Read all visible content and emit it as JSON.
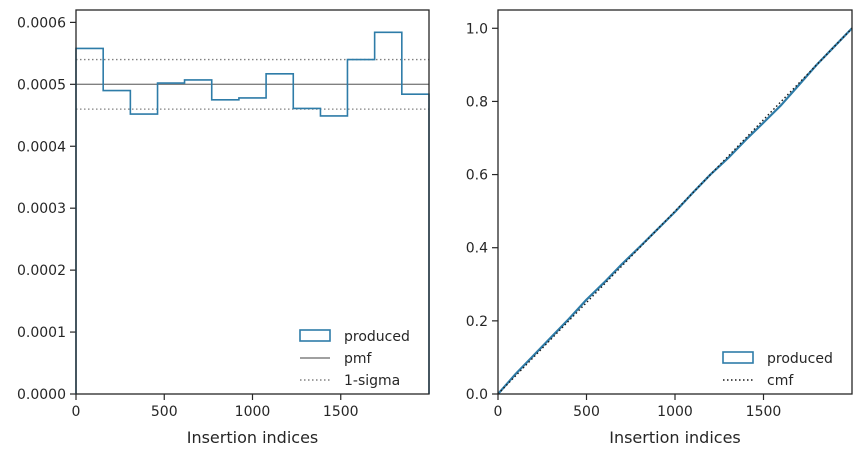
{
  "colors": {
    "produced": "#2e7ca8",
    "pmf": "#808080",
    "sigma": "#808080",
    "cmf": "#1a1a1a",
    "axes": "#262626"
  },
  "chart_data": [
    {
      "type": "histogram-step",
      "xlabel": "Insertion indices",
      "ylabel": "",
      "xlim": [
        0,
        2000
      ],
      "ylim": [
        0,
        0.00062
      ],
      "xticks": [
        {
          "value": 0,
          "label": "0"
        },
        {
          "value": 500,
          "label": "500"
        },
        {
          "value": 1000,
          "label": "1000"
        },
        {
          "value": 1500,
          "label": "1500"
        }
      ],
      "yticks": [
        {
          "value": 0,
          "label": "0.0000"
        },
        {
          "value": 0.0001,
          "label": "0.0001"
        },
        {
          "value": 0.0002,
          "label": "0.0002"
        },
        {
          "value": 0.0003,
          "label": "0.0003"
        },
        {
          "value": 0.0004,
          "label": "0.0004"
        },
        {
          "value": 0.0005,
          "label": "0.0005"
        },
        {
          "value": 0.0006,
          "label": "0.0006"
        }
      ],
      "bin_edges": [
        0,
        154,
        308,
        462,
        615,
        769,
        923,
        1077,
        1231,
        1385,
        1538,
        1692,
        1846,
        2000
      ],
      "produced": [
        0.000558,
        0.00049,
        0.000452,
        0.000502,
        0.000507,
        0.000475,
        0.000478,
        0.000517,
        0.000461,
        0.000449,
        0.00054,
        0.000584,
        0.000484
      ],
      "pmf": 0.0005,
      "sigma_upper": 0.00054,
      "sigma_lower": 0.00046,
      "legend": {
        "position": "lower-right",
        "entries": [
          {
            "key": "produced",
            "label": "produced",
            "style": "patch"
          },
          {
            "key": "pmf",
            "label": "pmf",
            "style": "solid"
          },
          {
            "key": "sigma",
            "label": "1-sigma",
            "style": "dotted"
          }
        ]
      }
    },
    {
      "type": "line",
      "xlabel": "Insertion indices",
      "ylabel": "",
      "xlim": [
        0,
        2000
      ],
      "ylim": [
        0,
        1.05
      ],
      "xticks": [
        {
          "value": 0,
          "label": "0"
        },
        {
          "value": 500,
          "label": "500"
        },
        {
          "value": 1000,
          "label": "1000"
        },
        {
          "value": 1500,
          "label": "1500"
        }
      ],
      "yticks": [
        {
          "value": 0,
          "label": "0.0"
        },
        {
          "value": 0.2,
          "label": "0.2"
        },
        {
          "value": 0.4,
          "label": "0.4"
        },
        {
          "value": 0.6,
          "label": "0.6"
        },
        {
          "value": 0.8,
          "label": "0.8"
        },
        {
          "value": 1.0,
          "label": "1.0"
        }
      ],
      "produced": {
        "x": [
          0,
          100,
          200,
          300,
          400,
          500,
          600,
          700,
          800,
          900,
          1000,
          1100,
          1200,
          1300,
          1400,
          1500,
          1600,
          1700,
          1800,
          1900,
          2000
        ],
        "y": [
          0,
          0.055,
          0.105,
          0.155,
          0.205,
          0.258,
          0.305,
          0.355,
          0.402,
          0.45,
          0.498,
          0.55,
          0.6,
          0.645,
          0.695,
          0.742,
          0.79,
          0.845,
          0.9,
          0.95,
          1.0
        ]
      },
      "cmf": {
        "x": [
          0,
          2000
        ],
        "y": [
          0,
          1.0
        ]
      },
      "legend": {
        "position": "lower-right",
        "entries": [
          {
            "key": "produced",
            "label": "produced",
            "style": "patch"
          },
          {
            "key": "cmf",
            "label": "cmf",
            "style": "dotted"
          }
        ]
      }
    }
  ]
}
